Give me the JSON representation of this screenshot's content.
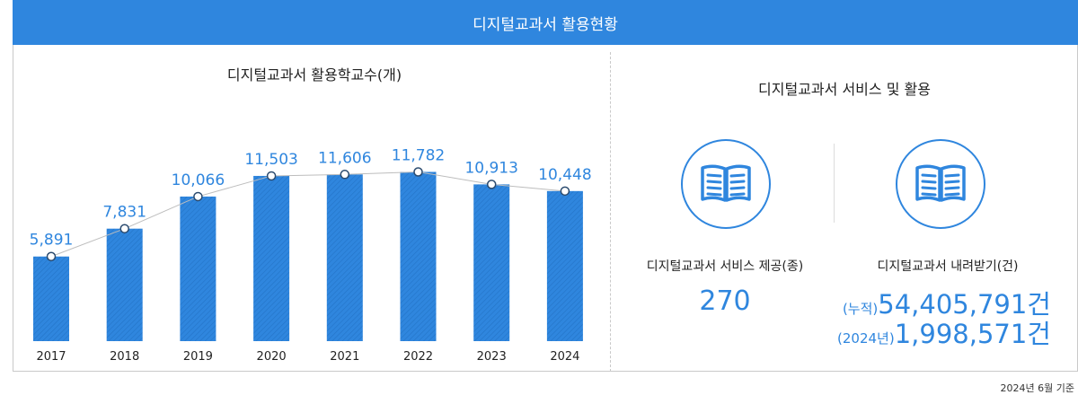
{
  "header": {
    "title": "디지털교과서 활용현황"
  },
  "chart_data": {
    "type": "bar",
    "title": "디지털교과서 활용학교수(개)",
    "categories": [
      "2017",
      "2018",
      "2019",
      "2020",
      "2021",
      "2022",
      "2023",
      "2024"
    ],
    "values": [
      5891,
      7831,
      10066,
      11503,
      11606,
      11782,
      10913,
      10448
    ],
    "value_labels": [
      "5,891",
      "7,831",
      "10,066",
      "11,503",
      "11,606",
      "11,782",
      "10,913",
      "10,448"
    ],
    "xlabel": "",
    "ylabel": "",
    "ylim": [
      0,
      14000
    ],
    "trend_line": true,
    "colors": {
      "bar": "#2f86de",
      "line": "#bdbdbd",
      "label": "#2f86de"
    }
  },
  "services": {
    "title": "디지털교과서 서비스 및 활용",
    "provided": {
      "icon": "book-icon",
      "label": "디지털교과서 서비스 제공(종)",
      "value": "270"
    },
    "downloads": {
      "icon": "book-icon",
      "label": "디지털교과서 내려받기(건)",
      "cumulative_prefix": "(누적)",
      "cumulative_value": "54,405,791건",
      "year_prefix": "(2024년)",
      "year_value": "1,998,571건"
    }
  },
  "footnote": "2024년 6월 기준"
}
